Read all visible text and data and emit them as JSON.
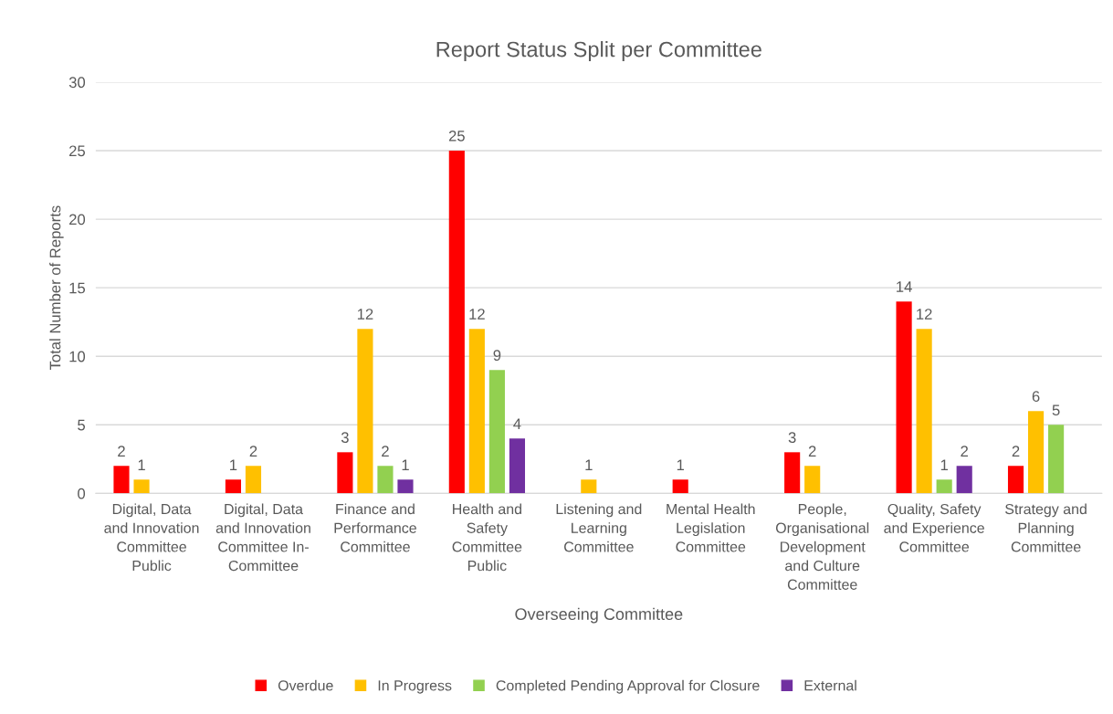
{
  "chart_data": {
    "type": "bar",
    "title": "Report Status Split per Committee",
    "xlabel": "Overseeing Committee",
    "ylabel": "Total Number of Reports",
    "categories": [
      "Digital, Data\nand Innovation\nCommittee\nPublic",
      "Digital, Data\nand Innovation\nCommittee In-\nCommittee",
      "Finance and\nPerformance\nCommittee",
      "Health and\nSafety\nCommittee\nPublic",
      "Listening and\nLearning\nCommittee",
      "Mental Health\nLegislation\nCommittee",
      "People,\nOrganisational\nDevelopment\nand Culture\nCommittee",
      "Quality, Safety\nand Experience\nCommittee",
      "Strategy and\nPlanning\nCommittee"
    ],
    "series": [
      {
        "name": "Overdue",
        "color": "#ff0000",
        "values": [
          2,
          1,
          3,
          25,
          null,
          1,
          3,
          14,
          2
        ]
      },
      {
        "name": "In Progress",
        "color": "#ffc000",
        "values": [
          1,
          2,
          12,
          12,
          1,
          null,
          2,
          12,
          6
        ]
      },
      {
        "name": "Completed Pending Approval for Closure",
        "color": "#92d050",
        "values": [
          null,
          null,
          2,
          9,
          null,
          null,
          null,
          1,
          5
        ]
      },
      {
        "name": "External",
        "color": "#7030a0",
        "values": [
          null,
          null,
          1,
          4,
          null,
          null,
          null,
          2,
          null
        ]
      }
    ],
    "ylim": [
      0,
      30
    ],
    "yticks": [
      0,
      5,
      10,
      15,
      20,
      25,
      30
    ],
    "grid": "y",
    "legend": "bottom",
    "data_labels": true
  }
}
